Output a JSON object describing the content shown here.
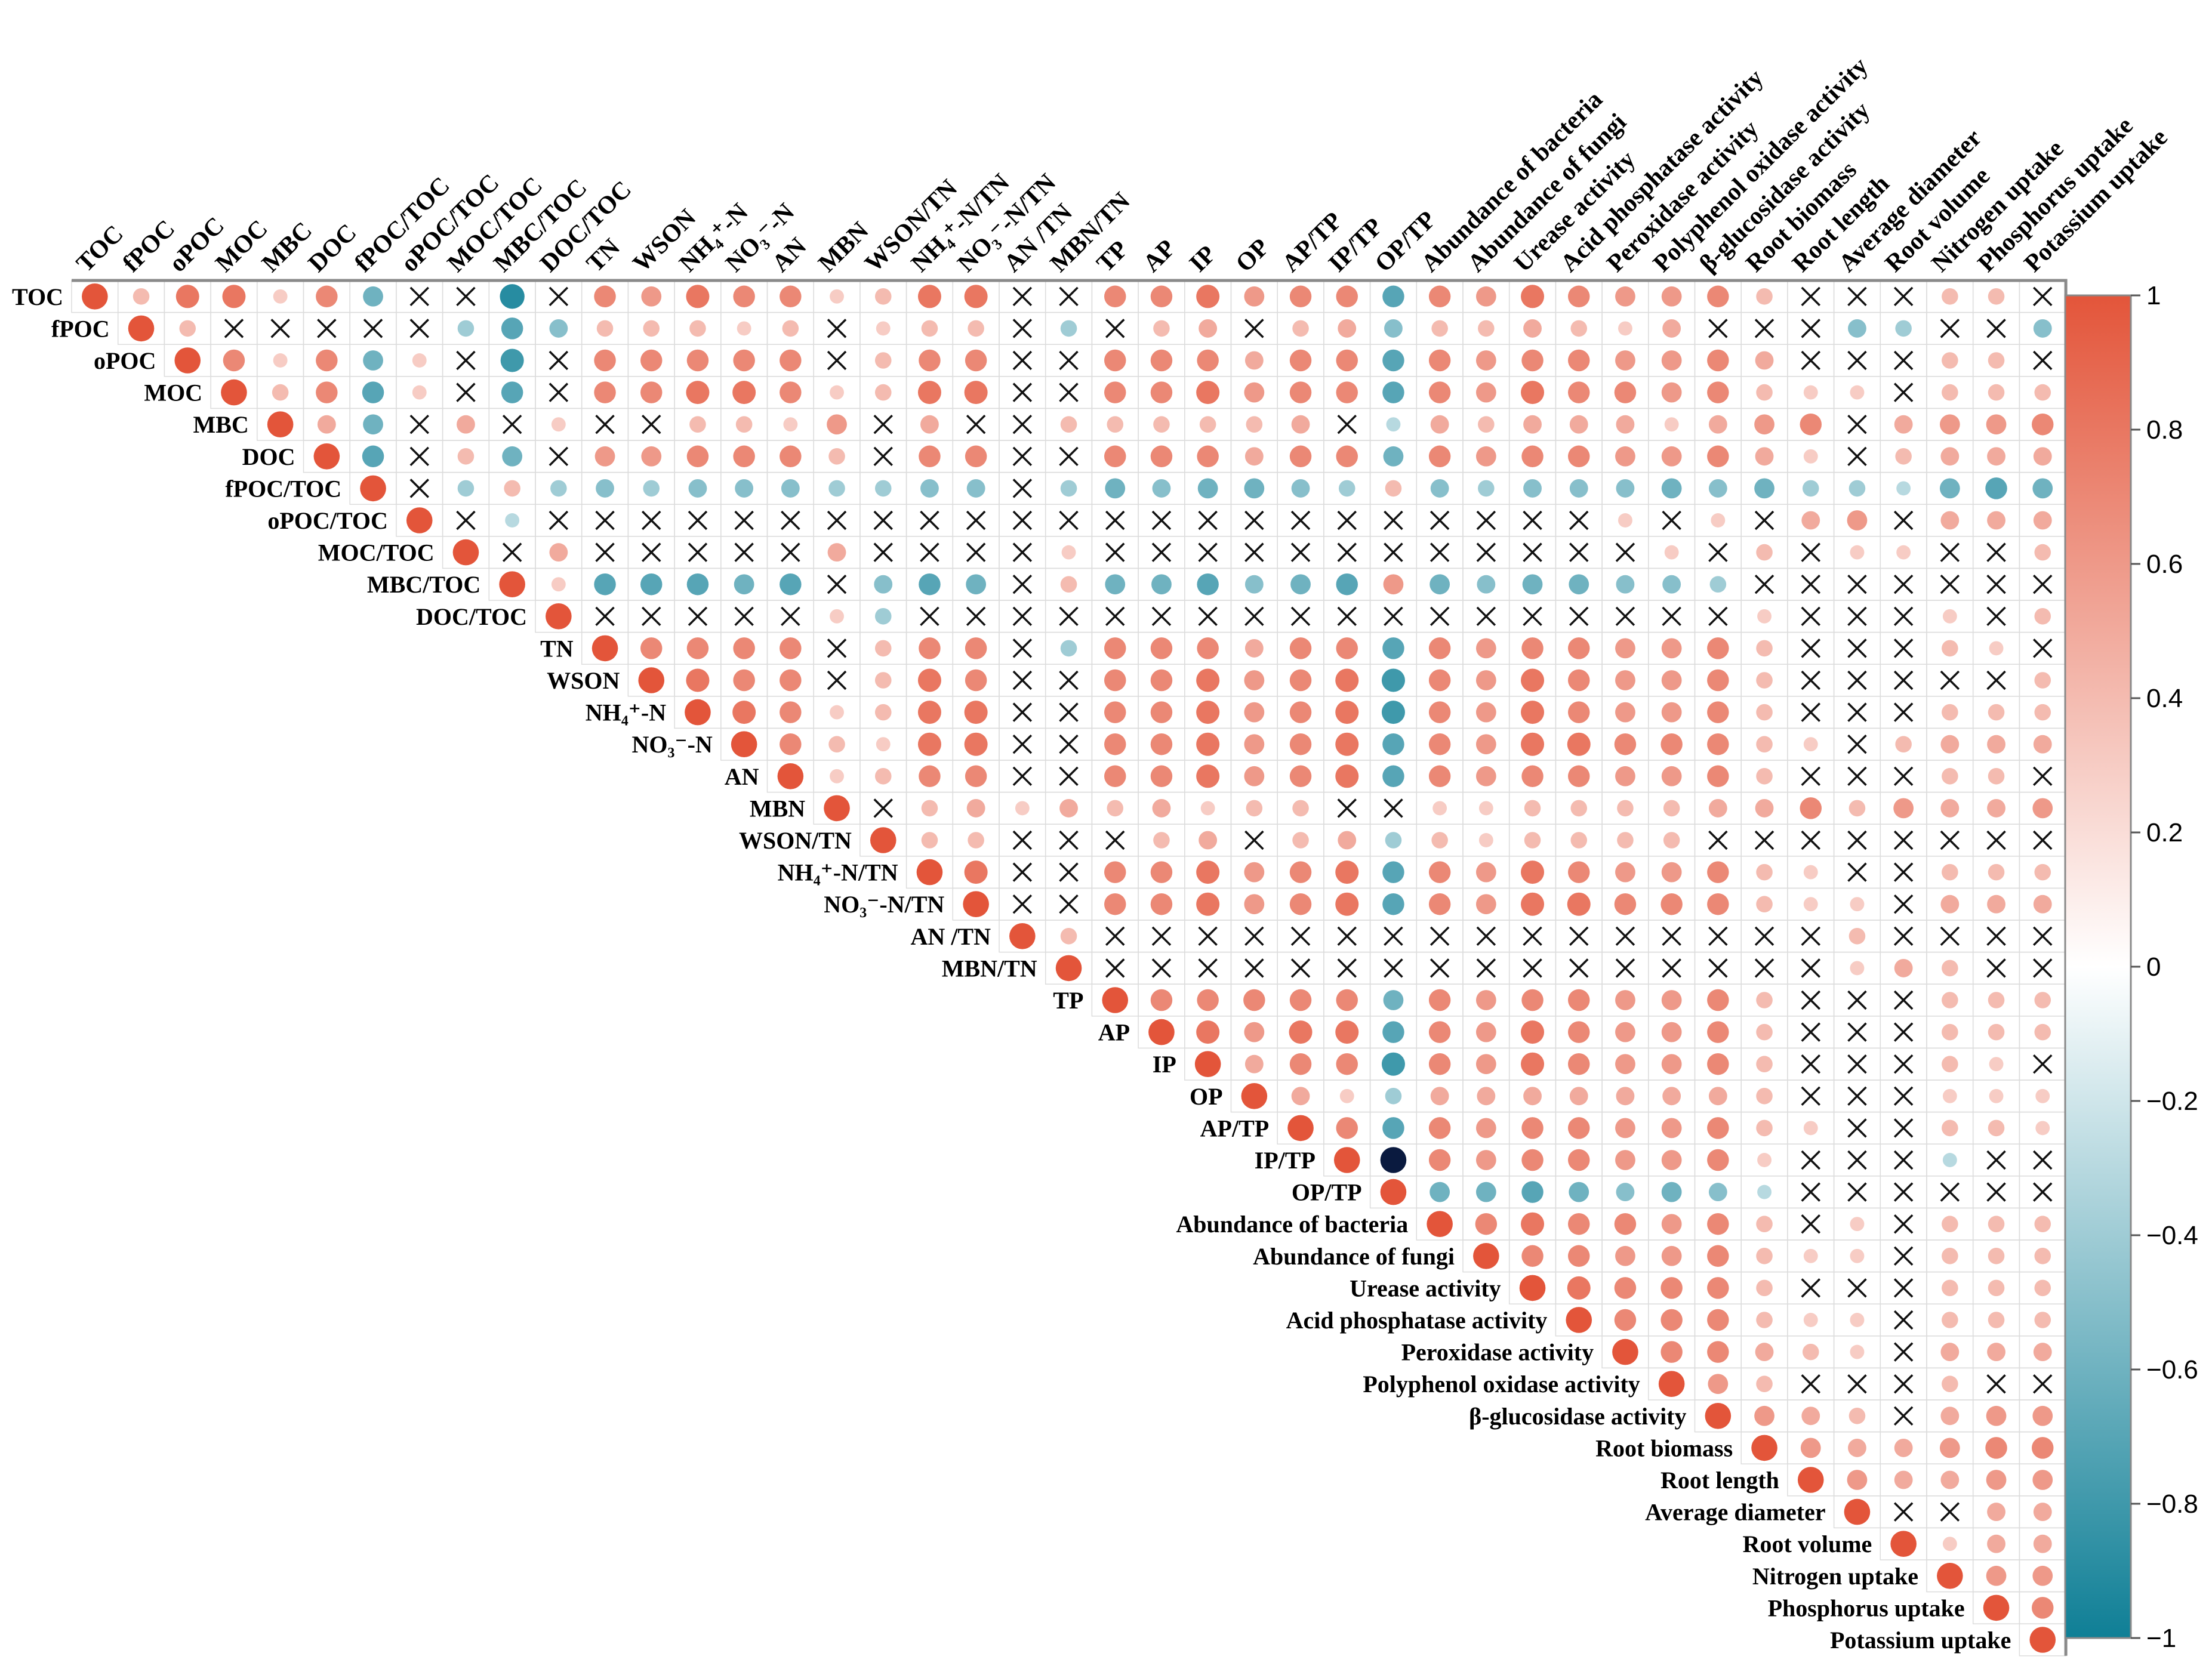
{
  "chart_data": {
    "type": "heatmap",
    "subtype": "correlation-matrix-upper-triangle",
    "variables": [
      "TOC",
      "fPOC",
      "oPOC",
      "MOC",
      "MBC",
      "DOC",
      "fPOC/TOC",
      "oPOC/TOC",
      "MOC/TOC",
      "MBC/TOC",
      "DOC/TOC",
      "TN",
      "WSON",
      "NH₄⁺-N",
      "NO₃⁻-N",
      "AN",
      "MBN",
      "WSON/TN",
      "NH₄⁺-N/TN",
      "NO₃⁻-N/TN",
      "AN /TN",
      "MBN/TN",
      "TP",
      "AP",
      "IP",
      "OP",
      "AP/TP",
      "IP/TP",
      "OP/TP",
      "Abundance of bacteria",
      "Abundance of fungi",
      "Urease activity",
      "Acid phosphatase activity",
      "Peroxidase activity",
      "Polyphenol oxidase activity",
      "β-glucosidase activity",
      "Root biomass",
      "Root length",
      "Average diameter",
      "Root volume",
      "Nitrogen uptake",
      "Phosphorus uptake",
      "Potassium uptake"
    ],
    "row_estimates": [
      "1 .4 .8 .8 .3 .7 -.6 x x -.9 x .7 .6 .8 .7 .7 .3 .4 .8 .8 x x .7 .7 .8 .6 .7 .7 -.7 .7 .6 .8 .7 .6 .6 .7 .4 x x x .4 .4 x",
      "1 .4 x x x x x -.4 -.7 -.5 .4 .4 .4 .3 .4 x .3 .4 .4 x -.4 x .4 .5 x .4 .5 -.5 .4 .4 .5 .4 .3 .5 x x x -.5 -.4 x x -.5",
      "1 .7 .3 .7 -.6 .3 x -.8 x .7 .7 .7 .7 .7 x .4 .7 .7 x x .7 .7 .7 .5 .7 .7 -.7 .7 .6 .7 .7 .6 .6 .7 .5 x x x .4 .4 x",
      "1 .4 .7 -.7 .3 x -.7 x .7 .7 .8 .8 .7 .3 .4 .8 .8 x x .7 .7 .8 .6 .7 .7 -.7 .7 .6 .8 .7 .7 .6 .7 .4 .3 .3 x .4 .4 .4",
      "1 .5 -.6 x .5 x .3 x x .4 .4 .3 .6 x .5 x x .4 .4 .4 .4 .4 .5 x -.3 .5 .4 .5 .5 .5 .3 .5 .6 .7 x .5 .6 .6 .7",
      "1 -.7 x .4 -.6 x .6 .6 .7 .7 .7 .4 x .7 .7 x x .7 .7 .7 .5 .7 .7 -.6 .7 .6 .7 .7 .6 .6 .7 .5 .3 x .4 .5 .5 .5",
      "1 x -.4 .4 -.4 -.5 -.4 -.5 -.5 -.5 -.4 -.4 -.5 -.5 x -.4 -.6 -.5 -.6 -.6 -.5 -.4 .4 -.5 -.4 -.5 -.5 -.5 -.6 -.5 -.6 -.4 -.4 -.3 -.6 -.7 -.6",
      "1 x -.3 x x x x x x x x x x x x x x x x x x x x x x x .3 x .3 x .5 .6 x .5 .5 .5 .6",
      "1 x .5 x x x x x .5 x x x x .3 x x x x x x x x x x x x .3 x .4 x .3 .3 x x .4 .4 .4 .4 .5",
      "1 .3 -.7 -.7 -.7 -.6 -.7 x -.5 -.7 -.6 x .4 -.6 -.6 -.7 -.5 -.6 -.7 .6 -.6 -.5 -.6 -.6 -.5 -.5 -.4 x x x x x x x",
      "1 x x x x x .3 -.4 x x x x x x x x x x x x x x x x x x .3 x x x .3 x .4",
      "1 .7 .7 .7 .7 x .4 .7 .7 x -.4 .7 .7 .7 .5 .7 .7 -.7 .7 .6 .7 .7 .6 .6 .7 .4 x x x .4 .3 x",
      "1 .8 .7 .7 x .4 .8 .7 x x .7 .7 .8 .6 .7 .8 -.8 .7 .6 .8 .7 .6 .6 .7 .4 x x x x x .4",
      "1 .8 .7 .3 .4 .8 .8 x x .7 .7 .8 .6 .7 .8 -.8 .7 .6 .8 .7 .6 .6 .7 .4 x x x .4 .4 .4",
      "1 .7 .4 .3 .8 .8 x x .7 .7 .8 .6 .7 .8 -.7 .7 .6 .8 .8 .7 .7 .7 .4 .3 x .4 .5 .5 .5",
      "1 .3 .4 .7 .7 x x .7 .7 .8 .6 .7 .8 -.7 .7 .6 .7 .7 .6 .6 .7 .4 x x x .4 .4 x",
      "1 x .4 .5 .3 .5 .4 .5 .3 .4 .4 x x .3 .3 .4 .4 .4 .4 .5 .5 .7 .4 .6 .5 .5 .6",
      "1 .4 .4 x x x .4 .5 x .4 .5 -.4 .4 .3 .4 .4 .4 .4 x x x x x x x x",
      "1 .8 x x .7 .7 .8 .6 .7 .8 -.7 .7 .6 .8 .7 .6 .6 .7 .4 .3 x x .4 .4 .4",
      "1 x x .7 .7 .8 .6 .7 .8 -.7 .7 .6 .8 .8 .7 .7 .7 .4 .3 .3 x .5 .5 .5",
      "1 .4 x x x x x x x x x x x x x x x x .4 x x x x x",
      "1 x x x x x x x x x x x x x x x x .3 .5 .4 x x x",
      "1 .7 .7 .7 .7 .7 -.6 .7 .6 .7 .7 .6 .6 .7 .4 x x x .4 .4 .4",
      "1 .8 .6 .8 .8 -.7 .7 .6 .8 .7 .6 .6 .7 .4 x x x .4 .4 .4",
      "1 .5 .7 .7 -.8 .7 .6 .8 .7 .6 .6 .7 .4 x x x .4 .3 x",
      "1 .5 .3 -.4 .5 .5 .5 .5 .5 .5 .5 .4 x x x .3 .3 .3",
      "1 .7 -.7 .7 .6 .7 .7 .6 .6 .7 .4 .3 x x .4 .4 .3",
      "1 -1 .7 .6 .7 .7 .6 .6 .7 .3 x x x -.3 x x",
      "1 -.6 -.6 -.7 -.6 -.5 -.6 -.5 -.3 x x x x x x",
      "1 .7 .8 .7 .7 .6 .7 .4 x .3 x .4 .4 .4",
      "1 .7 .7 .6 .6 .7 .4 .3 .3 x .4 .4 .4",
      "1 .8 .7 .7 .7 .4 x x x .4 .4 .4",
      "1 .7 .7 .7 .4 .3 .3 x .4 .4 .4",
      "1 .7 .7 .5 .4 .3 x .5 .5 .5",
      "1 .6 .4 x x x .4 x x",
      "1 .6 .5 .4 x .5 .6 .6",
      "1 .6 .5 .5 .6 .7 .7",
      "1 .6 .5 .5 .6 .6",
      "1 x x .5 .5",
      "1 .3 .5 .5",
      "1 .6 .6",
      "1 .7",
      "1"
    ],
    "non_significant_marker": "×",
    "colorbar": {
      "min": -1,
      "max": 1,
      "ticks": [
        1,
        0.8,
        0.6,
        0.4,
        0.2,
        0,
        -0.2,
        -0.4,
        -0.6,
        -0.8,
        -1
      ],
      "tick_labels": [
        "1",
        "0.8",
        "0.6",
        "0.4",
        "0.2",
        "0",
        "−0.2",
        "−0.4",
        "−0.6",
        "−0.8",
        "−1"
      ],
      "colors": [
        "#0f7f96",
        "#ffffff",
        "#e3553a"
      ],
      "extreme_negative_color": "#0a1a3f"
    },
    "title": "",
    "xlabel": "",
    "ylabel": ""
  }
}
